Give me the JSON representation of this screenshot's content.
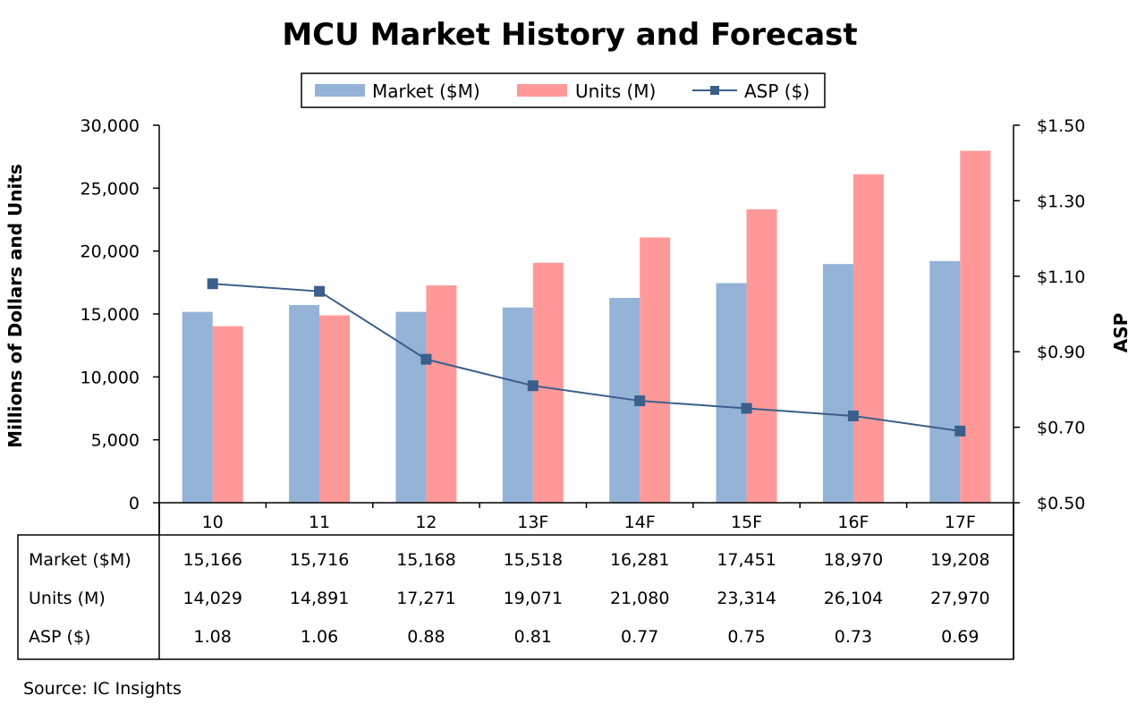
{
  "chart_data": {
    "type": "bar",
    "title": "MCU Market History and Forecast",
    "categories": [
      "10",
      "11",
      "12",
      "13F",
      "14F",
      "15F",
      "16F",
      "17F"
    ],
    "series": [
      {
        "name": "Market ($M)",
        "kind": "bar",
        "axis": "left",
        "color": "#95b3d7",
        "values": [
          15166,
          15716,
          15168,
          15518,
          16281,
          17451,
          18970,
          19208
        ]
      },
      {
        "name": "Units (M)",
        "kind": "bar",
        "axis": "left",
        "color": "#ff9999",
        "values": [
          14029,
          14891,
          17271,
          19071,
          21080,
          23314,
          26104,
          27970
        ]
      },
      {
        "name": "ASP ($)",
        "kind": "line",
        "axis": "right",
        "color": "#3a5f8a",
        "values": [
          1.08,
          1.06,
          0.88,
          0.81,
          0.77,
          0.75,
          0.73,
          0.69
        ]
      }
    ],
    "ylabel": "Millions of Dollars and Units",
    "y2label": "ASP",
    "ylim": [
      0,
      30000
    ],
    "y2lim": [
      0.5,
      1.5
    ],
    "yticks": [
      "0",
      "5,000",
      "10,000",
      "15,000",
      "20,000",
      "25,000",
      "30,000"
    ],
    "y2ticks": [
      "$0.50",
      "$0.70",
      "$0.90",
      "$1.10",
      "$1.30",
      "$1.50"
    ],
    "legend_position": "top-center",
    "table": {
      "row_labels": [
        "Market ($M)",
        "Units (M)",
        "ASP ($)"
      ],
      "rows": [
        [
          "15,166",
          "15,716",
          "15,168",
          "15,518",
          "16,281",
          "17,451",
          "18,970",
          "19,208"
        ],
        [
          "14,029",
          "14,891",
          "17,271",
          "19,071",
          "21,080",
          "23,314",
          "26,104",
          "27,970"
        ],
        [
          "1.08",
          "1.06",
          "0.88",
          "0.81",
          "0.77",
          "0.75",
          "0.73",
          "0.69"
        ]
      ]
    }
  },
  "source": "Source:  IC Insights"
}
